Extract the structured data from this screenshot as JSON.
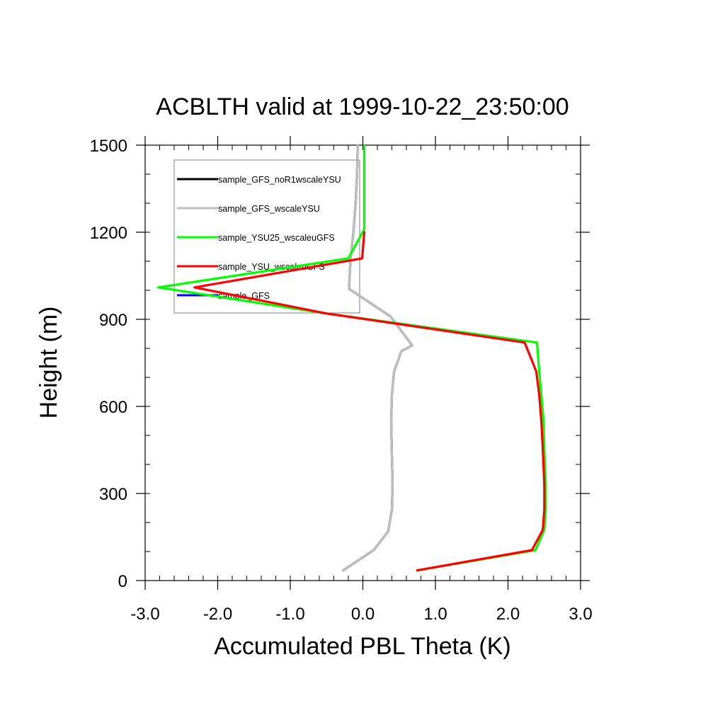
{
  "chart_data": {
    "type": "line",
    "title": "ACBLTH valid at 1999-10-22_23:50:00",
    "xlabel": "Accumulated PBL Theta (K)",
    "ylabel": "Height (m)",
    "xlim": [
      -3.0,
      3.0
    ],
    "ylim": [
      0,
      1500
    ],
    "xticks": [
      -3.0,
      -2.0,
      -1.0,
      0.0,
      1.0,
      2.0,
      3.0
    ],
    "xtick_labels": [
      "-3.0",
      "-2.0",
      "-1.0",
      "0.0",
      "1.0",
      "2.0",
      "3.0"
    ],
    "yticks": [
      0,
      300,
      600,
      900,
      1200,
      1500
    ],
    "ytick_labels": [
      "0",
      "300",
      "600",
      "900",
      "1200",
      "1500"
    ],
    "x_minor_step": 0.2,
    "y_minor_step": 100,
    "grid": false,
    "legend_position": "top-left",
    "series": [
      {
        "name": "sample_GFS_noR1wscaleYSU",
        "color": "#000000",
        "x": [
          -0.27,
          0.15,
          0.35,
          0.4,
          0.41,
          0.4,
          0.39,
          0.4,
          0.43,
          0.53,
          0.68,
          0.38,
          -0.19,
          -0.17,
          -0.13,
          -0.1,
          -0.08,
          -0.07
        ],
        "y": [
          35,
          105,
          170,
          245,
          330,
          430,
          550,
          640,
          720,
          790,
          810,
          910,
          1005,
          1110,
          1200,
          1300,
          1400,
          1500
        ]
      },
      {
        "name": "sample_GFS_wscaleYSU",
        "color": "#bebebe",
        "x": [
          -0.27,
          0.15,
          0.35,
          0.4,
          0.41,
          0.4,
          0.39,
          0.4,
          0.43,
          0.53,
          0.68,
          0.38,
          -0.19,
          -0.17,
          -0.13,
          -0.1,
          -0.08,
          -0.07
        ],
        "y": [
          35,
          105,
          170,
          245,
          330,
          430,
          550,
          640,
          720,
          790,
          810,
          910,
          1005,
          1110,
          1200,
          1300,
          1400,
          1500
        ]
      },
      {
        "name": "sample_YSU25_wscaleuGFS",
        "color": "#00ff00",
        "x": [
          0.75,
          2.38,
          2.5,
          2.52,
          2.52,
          2.5,
          2.49,
          2.46,
          2.43,
          2.4,
          -0.5,
          -2.82,
          -0.2,
          0.02,
          0.02,
          0.02
        ],
        "y": [
          35,
          105,
          175,
          245,
          330,
          450,
          550,
          640,
          720,
          820,
          920,
          1010,
          1110,
          1210,
          1400,
          1500
        ]
      },
      {
        "name": "sample_YSU_wscaleuGFS",
        "color": "#ff0000",
        "x": [
          0.75,
          2.33,
          2.48,
          2.5,
          2.5,
          2.48,
          2.46,
          2.43,
          2.39,
          2.23,
          -0.5,
          -2.32,
          -0.01,
          0.02
        ],
        "y": [
          35,
          105,
          175,
          245,
          330,
          450,
          550,
          640,
          720,
          820,
          920,
          1010,
          1110,
          1200
        ]
      },
      {
        "name": "sample_GFS",
        "color": "#0000ff",
        "x": [],
        "y": []
      }
    ]
  }
}
